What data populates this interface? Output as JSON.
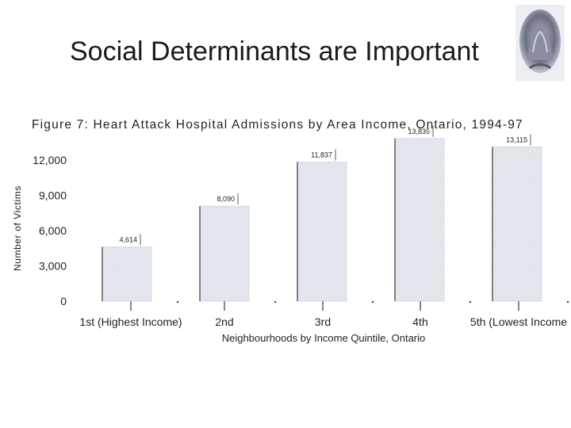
{
  "slide": {
    "title": "Social Determinants are Important",
    "image_icon": "hands-over-face-photo"
  },
  "chart_data": {
    "type": "bar",
    "title": "Figure 7: Heart Attack Hospital Admissions by Area Income, Ontario, 1994-97",
    "xlabel": "Neighbourhoods by Income Quintile, Ontario",
    "ylabel": "Number of Victims",
    "categories": [
      "1st (Highest Income)",
      "2nd",
      "3rd",
      "4th",
      "5th (Lowest Income"
    ],
    "values": [
      4614,
      8090,
      11837,
      13835,
      13115
    ],
    "value_labels": [
      "4,614",
      "8,090",
      "11,837",
      "13,835",
      "13,115"
    ],
    "yticks": [
      0,
      3000,
      6000,
      9000,
      12000
    ],
    "ytick_labels": [
      "0",
      "3,000",
      "6,000",
      "9,000",
      "12,000"
    ],
    "ylim": [
      0,
      14000
    ],
    "grid": false,
    "colors": {
      "bar": "#e4e6ee",
      "bar_stroke": "#c9ccd8",
      "axis": "#111111"
    }
  }
}
